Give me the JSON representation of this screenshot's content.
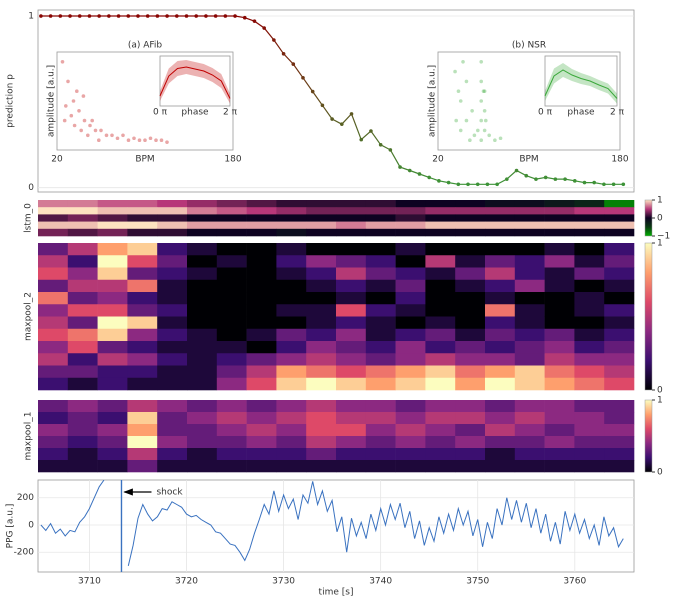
{
  "chart_data": [
    {
      "type": "line",
      "ylabel": "prediction p",
      "ylim": [
        -0.025,
        1.035
      ],
      "yticks": [
        0,
        1
      ],
      "xlim": [
        3704.7,
        3766.1
      ],
      "colors": [
        "#8b0000",
        "#3a9a3a"
      ],
      "markers": true,
      "x": [
        3705,
        3706,
        3707,
        3708,
        3709,
        3710,
        3711,
        3712,
        3713,
        3714,
        3715,
        3716,
        3717,
        3718,
        3719,
        3720,
        3721,
        3722,
        3723,
        3724,
        3725,
        3726,
        3727,
        3728,
        3729,
        3730,
        3731,
        3732,
        3733,
        3734,
        3735,
        3736,
        3737,
        3738,
        3739,
        3740,
        3741,
        3742,
        3743,
        3744,
        3745,
        3746,
        3747,
        3748,
        3749,
        3750,
        3751,
        3752,
        3753,
        3754,
        3755,
        3756,
        3757,
        3758,
        3759,
        3760,
        3761,
        3762,
        3763,
        3764,
        3765
      ],
      "values": [
        1,
        1,
        1,
        1,
        1,
        1,
        1,
        1,
        1,
        1,
        1,
        1,
        1,
        1,
        1,
        1,
        1,
        1,
        1,
        1,
        1,
        0.99,
        0.97,
        0.93,
        0.86,
        0.78,
        0.72,
        0.64,
        0.56,
        0.48,
        0.4,
        0.37,
        0.43,
        0.28,
        0.33,
        0.25,
        0.22,
        0.12,
        0.1,
        0.08,
        0.06,
        0.04,
        0.03,
        0.02,
        0.02,
        0.02,
        0.02,
        0.02,
        0.05,
        0.1,
        0.07,
        0.05,
        0.06,
        0.05,
        0.05,
        0.04,
        0.03,
        0.03,
        0.02,
        0.02,
        0.02
      ]
    },
    {
      "type": "scatter",
      "title": "(a) AFib",
      "xlabel": "BPM",
      "ylabel": "amplitude [a.u.]",
      "xlim": [
        20,
        180
      ],
      "xticks": [
        20,
        180
      ],
      "ylim": [
        0,
        1
      ],
      "color": "#c00000",
      "x": [
        25,
        30,
        35,
        40,
        45,
        50,
        55,
        60,
        65,
        70,
        75,
        80,
        85,
        90,
        95,
        100,
        105,
        110,
        115,
        120,
        28,
        33,
        38,
        42,
        48,
        52,
        58,
        27,
        36,
        44
      ],
      "y": [
        0.9,
        0.7,
        0.5,
        0.4,
        0.3,
        0.25,
        0.2,
        0.2,
        0.15,
        0.15,
        0.12,
        0.15,
        0.1,
        0.12,
        0.1,
        0.1,
        0.12,
        0.1,
        0.1,
        0.08,
        0.45,
        0.35,
        0.6,
        0.2,
        0.15,
        0.3,
        0.1,
        0.3,
        0.25,
        0.55
      ],
      "inset": {
        "xlabel": "phase",
        "xlim": [
          0,
          2
        ],
        "xticks": [
          {
            "value": 0,
            "label": "0 π"
          },
          {
            "value": 2,
            "label": "2 π"
          }
        ],
        "ylim": [
          0,
          1
        ],
        "x": [
          0,
          0.25,
          0.5,
          0.75,
          1,
          1.25,
          1.5,
          1.75,
          2
        ],
        "values": [
          0.2,
          0.6,
          0.75,
          0.78,
          0.74,
          0.7,
          0.62,
          0.5,
          0.15
        ],
        "band_low": [
          0.1,
          0.45,
          0.6,
          0.64,
          0.6,
          0.56,
          0.48,
          0.36,
          0.05
        ],
        "band_high": [
          0.3,
          0.75,
          0.9,
          0.92,
          0.88,
          0.84,
          0.76,
          0.64,
          0.25
        ]
      }
    },
    {
      "type": "scatter",
      "title": "(b) NSR",
      "xlabel": "BPM",
      "ylabel": "amplitude [a.u.]",
      "xlim": [
        20,
        180
      ],
      "xticks": [
        20,
        180
      ],
      "ylim": [
        0,
        1
      ],
      "color": "#3aa83a",
      "x": [
        35,
        38,
        40,
        42,
        45,
        50,
        55,
        60,
        62,
        65,
        58,
        58,
        58,
        58,
        58,
        61,
        61,
        61,
        40,
        45,
        36,
        48,
        52,
        70,
        75
      ],
      "y": [
        0.8,
        0.6,
        0.5,
        0.9,
        0.3,
        0.4,
        0.2,
        0.6,
        0.3,
        0.15,
        0.1,
        0.3,
        0.5,
        0.7,
        0.9,
        0.2,
        0.4,
        0.6,
        0.2,
        0.7,
        0.3,
        0.1,
        0.15,
        0.1,
        0.12
      ],
      "inset": {
        "xlabel": "phase",
        "xlim": [
          0,
          2
        ],
        "xticks": [
          {
            "value": 0,
            "label": "0 π"
          },
          {
            "value": 2,
            "label": "2 π"
          }
        ],
        "ylim": [
          0,
          1
        ],
        "x": [
          0,
          0.25,
          0.5,
          0.75,
          1,
          1.25,
          1.5,
          1.75,
          2
        ],
        "values": [
          0.2,
          0.6,
          0.72,
          0.62,
          0.55,
          0.5,
          0.42,
          0.35,
          0.15
        ],
        "band_low": [
          0.1,
          0.45,
          0.58,
          0.5,
          0.44,
          0.4,
          0.32,
          0.25,
          0.05
        ],
        "band_high": [
          0.3,
          0.75,
          0.86,
          0.74,
          0.66,
          0.6,
          0.52,
          0.45,
          0.25
        ]
      }
    },
    {
      "type": "heatmap",
      "ylabel": "lstm_0",
      "xlim": [
        3704.7,
        3766.1
      ],
      "clim": [
        -1,
        1
      ],
      "cticks": [
        1,
        0,
        {
          "value": -1,
          "label": "−1"
        }
      ],
      "colormap": [
        "#00b000",
        "#0a3a12",
        "#0d0221",
        "#b73779",
        "#fde2c0"
      ],
      "z": [
        [
          0.7,
          0.7,
          0.6,
          0.6,
          0.5,
          0.4,
          0.3,
          0.2,
          0.1,
          0.1,
          0.1,
          0.1,
          0,
          0,
          0,
          -0.1,
          -0.1,
          -0.2,
          -0.3,
          -0.8
        ],
        [
          1,
          1,
          0.9,
          0.9,
          0.9,
          0.7,
          0.6,
          0.5,
          0.4,
          0.3,
          0.3,
          0.3,
          0.3,
          0.4,
          0.4,
          0.4,
          0.4,
          0.4,
          0.5,
          0.5
        ],
        [
          0.2,
          0.3,
          0.2,
          0.1,
          0.1,
          0,
          0,
          0,
          0,
          0,
          0,
          0,
          0.1,
          0,
          0,
          0,
          0,
          0,
          0,
          0
        ],
        [
          0.9,
          0.9,
          1,
          1,
          0.9,
          0.8,
          0.8,
          0.8,
          0.8,
          0.8,
          0.7,
          0.8,
          0.8,
          0.9,
          0.9,
          0.9,
          0.9,
          0.9,
          0.9,
          0.9
        ],
        [
          0.3,
          0.2,
          0.3,
          0.1,
          0.1,
          0,
          0,
          0,
          -0.1,
          0,
          0,
          0,
          0,
          0,
          0,
          0,
          0,
          0,
          0,
          0
        ]
      ]
    },
    {
      "type": "heatmap",
      "ylabel": "maxpool_2",
      "xlim": [
        3704.7,
        3766.1
      ],
      "clim": [
        0,
        1
      ],
      "cticks": [
        1,
        0
      ],
      "colormap": [
        "#000004",
        "#3b0f70",
        "#8c2981",
        "#de4968",
        "#fe9f6d",
        "#fcfdbf"
      ],
      "z": [
        [
          0.3,
          0.5,
          0.8,
          0.9,
          0.2,
          0.1,
          0,
          0,
          0.1,
          0,
          0,
          0,
          0.1,
          0,
          0,
          0,
          0,
          0.1,
          0,
          0.2
        ],
        [
          0.5,
          0.2,
          1,
          0.6,
          0.3,
          0,
          0.1,
          0,
          0.2,
          0.4,
          0.3,
          0.2,
          0,
          0.5,
          0.1,
          0.3,
          0.2,
          0.4,
          0.1,
          0.3
        ],
        [
          0.6,
          0.4,
          0.9,
          0.3,
          0.2,
          0.1,
          0,
          0,
          0.1,
          0.2,
          0.5,
          0.3,
          0.2,
          0.1,
          0.3,
          0.5,
          0.2,
          0.1,
          0.3,
          0.2
        ],
        [
          0.3,
          0.5,
          0.5,
          0.7,
          0.1,
          0,
          0,
          0,
          0,
          0.1,
          0.2,
          0.1,
          0.3,
          0,
          0.1,
          0.2,
          0.4,
          0.1,
          0,
          0.1
        ],
        [
          0.7,
          0.3,
          0.4,
          0.2,
          0.1,
          0,
          0,
          0,
          0,
          0,
          0.1,
          0,
          0.2,
          0,
          0,
          0.1,
          0,
          0,
          0.1,
          0
        ],
        [
          0.4,
          0.6,
          0.6,
          0.3,
          0.2,
          0,
          0,
          0,
          0.1,
          0.1,
          0.6,
          0.2,
          0.1,
          0,
          0,
          0.7,
          0.1,
          0,
          0.1,
          0.2
        ],
        [
          0.5,
          0.3,
          1,
          0.9,
          0.1,
          0,
          0,
          0,
          0,
          0.1,
          0.2,
          0.1,
          0,
          0.1,
          0,
          0.2,
          0.1,
          0,
          0,
          0.1
        ],
        [
          0.6,
          0.7,
          0.9,
          0.4,
          0.2,
          0.1,
          0,
          0.1,
          0.3,
          0.2,
          0.4,
          0.1,
          0.2,
          0.3,
          0.1,
          0.3,
          0.2,
          0.3,
          0.1,
          0.2
        ],
        [
          0.4,
          0.6,
          0.3,
          0.2,
          0.1,
          0.1,
          0.1,
          0,
          0.2,
          0.4,
          0.3,
          0.2,
          0.4,
          0.2,
          0.3,
          0.2,
          0.3,
          0.4,
          0.2,
          0.3
        ],
        [
          0.5,
          0.2,
          0.5,
          0.4,
          0.2,
          0.1,
          0.2,
          0.3,
          0.4,
          0.5,
          0.4,
          0.3,
          0.4,
          0.5,
          0.4,
          0.4,
          0.3,
          0.5,
          0.4,
          0.4
        ],
        [
          0.3,
          0.3,
          0.2,
          0.2,
          0.1,
          0.1,
          0.3,
          0.5,
          0.8,
          0.7,
          0.6,
          0.7,
          0.8,
          0.9,
          0.7,
          0.8,
          0.9,
          0.7,
          0.6,
          0.5
        ],
        [
          0.2,
          0.1,
          0.2,
          0.1,
          0.1,
          0.1,
          0.4,
          0.6,
          0.9,
          1,
          0.9,
          0.8,
          0.9,
          1,
          0.8,
          1,
          0.9,
          0.8,
          0.7,
          0.6
        ]
      ]
    },
    {
      "type": "heatmap",
      "ylabel": "maxpool_1",
      "xlim": [
        3704.7,
        3766.1
      ],
      "clim": [
        0,
        1
      ],
      "cticks": [
        1,
        0
      ],
      "colormap": [
        "#000004",
        "#3b0f70",
        "#8c2981",
        "#de4968",
        "#fe9f6d",
        "#fcfdbf"
      ],
      "z": [
        [
          0.3,
          0.4,
          0.3,
          0.5,
          0.4,
          0.3,
          0.4,
          0.3,
          0.4,
          0.5,
          0.4,
          0.4,
          0.3,
          0.4,
          0.4,
          0.3,
          0.4,
          0.4,
          0.3,
          0.3
        ],
        [
          0.2,
          0.3,
          0.2,
          0.9,
          0.3,
          0.4,
          0.5,
          0.4,
          0.5,
          0.6,
          0.5,
          0.5,
          0.4,
          0.5,
          0.5,
          0.4,
          0.5,
          0.4,
          0.4,
          0.3
        ],
        [
          0.4,
          0.3,
          0.4,
          0.8,
          0.3,
          0.3,
          0.4,
          0.5,
          0.4,
          0.6,
          0.6,
          0.4,
          0.5,
          0.4,
          0.3,
          0.5,
          0.4,
          0.3,
          0.4,
          0.4
        ],
        [
          0.3,
          0.2,
          0.3,
          1,
          0.4,
          0.3,
          0.3,
          0.4,
          0.3,
          0.5,
          0.4,
          0.3,
          0.4,
          0.3,
          0.4,
          0.3,
          0.3,
          0.4,
          0.3,
          0.3
        ],
        [
          0.2,
          0.1,
          0.2,
          0.5,
          0.2,
          0.1,
          0.2,
          0.2,
          0.2,
          0.3,
          0.2,
          0.2,
          0.2,
          0.2,
          0.2,
          0.1,
          0.2,
          0.2,
          0.2,
          0.2
        ],
        [
          0.1,
          0.1,
          0.1,
          0.3,
          0.1,
          0.1,
          0.1,
          0.1,
          0.1,
          0.1,
          0.1,
          0.1,
          0.1,
          0.1,
          0.1,
          0.1,
          0.1,
          0.1,
          0.1,
          0.1
        ]
      ]
    },
    {
      "type": "line",
      "ylabel": "PPG [a.u.]",
      "xlabel": "time [s]",
      "xlim": [
        3704.7,
        3766.1
      ],
      "xticks": [
        3710,
        3720,
        3730,
        3740,
        3750,
        3760
      ],
      "ylim": [
        -345,
        330
      ],
      "yticks": [
        -200,
        0,
        200
      ],
      "color": "#3a72c0",
      "annotation": {
        "text": "shock",
        "x": 3713.3
      },
      "x": [
        3705,
        3705.5,
        3706,
        3706.5,
        3707,
        3707.5,
        3708,
        3708.5,
        3709,
        3709.5,
        3710,
        3710.5,
        3711,
        3711.5,
        3712,
        3712.5,
        3713,
        3713.5,
        3714,
        3714.5,
        3715,
        3715.5,
        3716,
        3716.5,
        3717,
        3717.5,
        3718,
        3718.5,
        3719,
        3719.5,
        3720,
        3720.5,
        3721,
        3721.5,
        3722,
        3722.5,
        3723,
        3723.5,
        3724,
        3724.5,
        3725,
        3725.5,
        3726,
        3726.5,
        3727,
        3727.5,
        3728,
        3728.5,
        3729,
        3729.5,
        3730,
        3730.5,
        3731,
        3731.5,
        3732,
        3732.5,
        3733,
        3733.5,
        3734,
        3734.5,
        3735,
        3735.5,
        3736,
        3736.5,
        3737,
        3737.5,
        3738,
        3738.5,
        3739,
        3739.5,
        3740,
        3740.5,
        3741,
        3741.5,
        3742,
        3742.5,
        3743,
        3743.5,
        3744,
        3744.5,
        3745,
        3745.5,
        3746,
        3746.5,
        3747,
        3747.5,
        3748,
        3748.5,
        3749,
        3749.5,
        3750,
        3750.5,
        3751,
        3751.5,
        3752,
        3752.5,
        3753,
        3753.5,
        3754,
        3754.5,
        3755,
        3755.5,
        3756,
        3756.5,
        3757,
        3757.5,
        3758,
        3758.5,
        3759,
        3759.5,
        3760,
        3760.5,
        3761,
        3761.5,
        3762,
        3762.5,
        3763,
        3763.5,
        3764,
        3764.5,
        3765
      ],
      "values": [
        0,
        -40,
        10,
        -60,
        -30,
        -80,
        -40,
        -50,
        20,
        60,
        120,
        200,
        280,
        330,
        null,
        null,
        null,
        null,
        -300,
        -150,
        50,
        150,
        80,
        30,
        60,
        120,
        110,
        170,
        150,
        130,
        80,
        60,
        70,
        40,
        20,
        0,
        -50,
        -60,
        -100,
        -140,
        -150,
        -200,
        -260,
        -180,
        -60,
        40,
        150,
        80,
        250,
        100,
        220,
        120,
        190,
        40,
        220,
        160,
        320,
        150,
        250,
        100,
        180,
        -50,
        60,
        -200,
        50,
        -80,
        20,
        -100,
        80,
        -40,
        120,
        0,
        150,
        40,
        160,
        -20,
        100,
        -100,
        30,
        -150,
        -20,
        -120,
        60,
        -60,
        80,
        -40,
        120,
        0,
        100,
        -80,
        40,
        -160,
        20,
        -100,
        120,
        0,
        200,
        40,
        180,
        20,
        160,
        -20,
        120,
        -60,
        80,
        -120,
        20,
        -140,
        100,
        -40,
        80,
        -60,
        40,
        -100,
        0,
        -150,
        60,
        -80,
        -20,
        -160,
        -100
      ]
    }
  ]
}
